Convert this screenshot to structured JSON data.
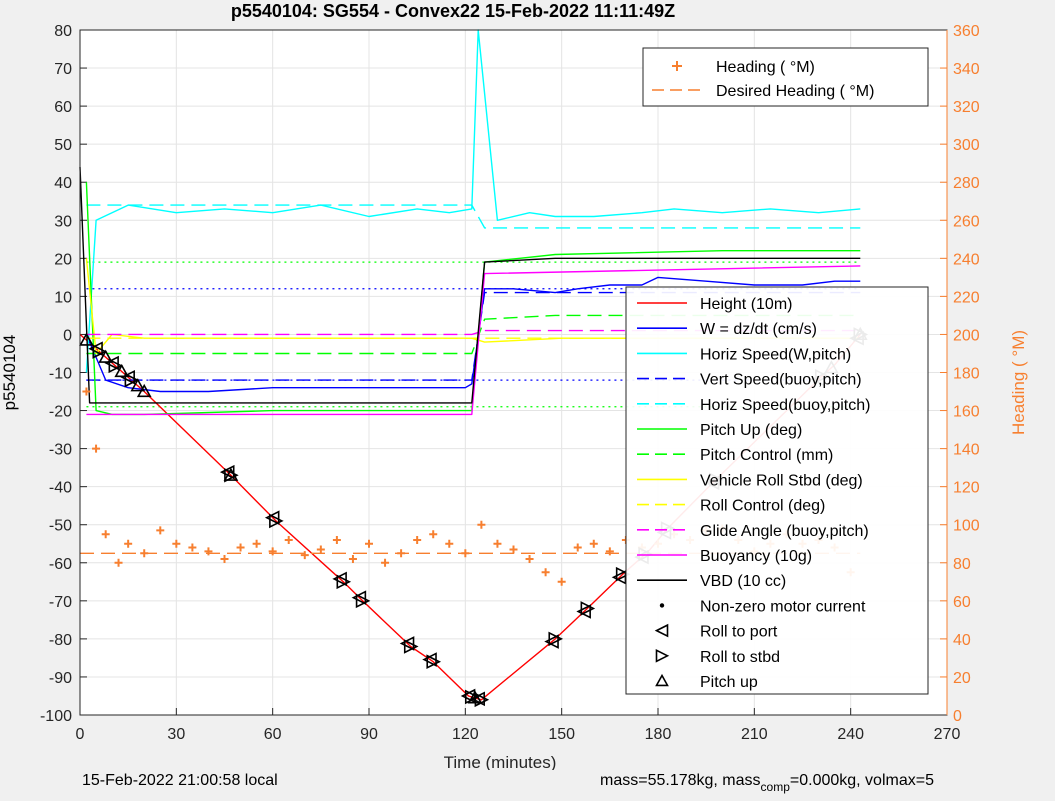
{
  "chart_data": {
    "type": "line",
    "title": "p5540104: SG554 - Convex22 15-Feb-2022 11:11:49Z",
    "xlabel": "Time (minutes)",
    "ylabel": "p5540104",
    "ylabel_right": "Heading (  °M)",
    "xlim": [
      0,
      270
    ],
    "ylim": [
      -100,
      80
    ],
    "ylim_right": [
      0,
      360
    ],
    "xticks": [
      0,
      30,
      60,
      90,
      120,
      150,
      180,
      210,
      240,
      270
    ],
    "yticks": [
      -100,
      -90,
      -80,
      -70,
      -60,
      -50,
      -40,
      -30,
      -20,
      -10,
      0,
      10,
      20,
      30,
      40,
      50,
      60,
      70,
      80
    ],
    "yticks_right": [
      0,
      20,
      40,
      60,
      80,
      100,
      120,
      140,
      160,
      180,
      200,
      220,
      240,
      260,
      280,
      300,
      320,
      340,
      360
    ],
    "grid": true,
    "legend_top_position": "top-right",
    "legend_top": [
      {
        "name": "Heading (  °M)",
        "style": "plus",
        "color": "#f77f2f"
      },
      {
        "name": "Desired Heading (    °M)",
        "style": "dashed",
        "color": "#f77f2f"
      }
    ],
    "legend_main_position": "right",
    "legend_main": [
      {
        "name": "Height (10m)",
        "style": "solid",
        "color": "#ff0000"
      },
      {
        "name": "W = dz/dt (cm/s)",
        "style": "solid",
        "color": "#0000ff"
      },
      {
        "name": "Horiz Speed(W,pitch)",
        "style": "solid",
        "color": "#00ffff"
      },
      {
        "name": "Vert Speed(buoy,pitch)",
        "style": "dashed",
        "color": "#0000ff"
      },
      {
        "name": "Horiz Speed(buoy,pitch)",
        "style": "dashed",
        "color": "#00ffff"
      },
      {
        "name": "Pitch Up (deg)",
        "style": "solid",
        "color": "#00ff00"
      },
      {
        "name": "Pitch Control (mm)",
        "style": "dashed",
        "color": "#00ff00"
      },
      {
        "name": "Vehicle Roll Stbd (deg)",
        "style": "solid",
        "color": "#ffff00"
      },
      {
        "name": "Roll Control (deg)",
        "style": "dashed",
        "color": "#ffff00"
      },
      {
        "name": "Glide Angle (buoy,pitch)",
        "style": "dashed",
        "color": "#ff00ff"
      },
      {
        "name": "Buoyancy (10g)",
        "style": "solid",
        "color": "#ff00ff"
      },
      {
        "name": "VBD (10 cc)",
        "style": "solid",
        "color": "#000000"
      },
      {
        "name": "Non-zero motor current",
        "style": "dot",
        "color": "#000000"
      },
      {
        "name": "Roll to port",
        "style": "tri-left",
        "color": "#000000"
      },
      {
        "name": "Roll to stbd",
        "style": "tri-right",
        "color": "#000000"
      },
      {
        "name": "Pitch up",
        "style": "tri-up",
        "color": "#000000"
      }
    ],
    "series": [
      {
        "name": "Height (10m)",
        "color": "#ff0000",
        "style": "solid",
        "x": [
          0,
          20,
          47,
          61,
          82,
          88,
          103,
          110,
          121,
          125,
          148,
          158,
          169,
          177,
          183,
          197,
          231,
          235,
          243
        ],
        "y": [
          0,
          -15,
          -37,
          -49,
          -65,
          -70,
          -82,
          -86,
          -95,
          -96,
          -80,
          -72,
          -63,
          -57,
          -51,
          -39,
          -11,
          -8,
          0
        ]
      },
      {
        "name": "W = dz/dt (cm/s)",
        "color": "#0000ff",
        "style": "solid",
        "x": [
          2,
          8,
          15,
          25,
          40,
          60,
          80,
          100,
          120,
          122,
          126,
          135,
          148,
          155,
          165,
          175,
          180,
          195,
          210,
          225,
          235,
          243
        ],
        "y": [
          0,
          -12,
          -14,
          -15,
          -15,
          -14,
          -14,
          -14,
          -14,
          -13,
          12,
          12,
          11,
          12,
          13,
          13,
          15,
          14,
          13,
          13,
          14,
          14
        ]
      },
      {
        "name": "Horiz Speed(W,pitch)",
        "color": "#00ffff",
        "style": "solid",
        "x": [
          2,
          5,
          15,
          30,
          45,
          60,
          75,
          90,
          105,
          115,
          122,
          124,
          130,
          140,
          148,
          160,
          175,
          185,
          200,
          215,
          230,
          243
        ],
        "y": [
          -10,
          30,
          34,
          32,
          33,
          32,
          34,
          31,
          33,
          32,
          33,
          80,
          30,
          32,
          31,
          31,
          32,
          33,
          32,
          33,
          32,
          33
        ]
      },
      {
        "name": "Vert Speed(buoy,pitch)",
        "color": "#0000ff",
        "style": "dashed",
        "x": [
          2,
          122,
          126,
          243
        ],
        "y": [
          -12,
          -12,
          11,
          11
        ]
      },
      {
        "name": "Horiz Speed(buoy,pitch)",
        "color": "#00ffff",
        "style": "dashed",
        "x": [
          2,
          122,
          126,
          243
        ],
        "y": [
          34,
          34,
          28,
          28
        ]
      },
      {
        "name": "Pitch Up (deg)",
        "color": "#00ff00",
        "style": "solid",
        "x": [
          2,
          5,
          10,
          20,
          60,
          100,
          122,
          126,
          148,
          200,
          243
        ],
        "y": [
          40,
          -20,
          -21,
          -21,
          -20,
          -20,
          -20,
          19,
          21,
          22,
          22
        ]
      },
      {
        "name": "Pitch Control (mm)",
        "color": "#00ff00",
        "style": "dashed",
        "x": [
          2,
          20,
          122,
          126,
          148,
          243
        ],
        "y": [
          -5,
          -5,
          -5,
          4,
          5,
          5
        ]
      },
      {
        "name": "Vehicle Roll Stbd (deg)",
        "color": "#ffff00",
        "style": "solid",
        "x": [
          2,
          5,
          10,
          20,
          48,
          60,
          100,
          122,
          126,
          150,
          180,
          243
        ],
        "y": [
          20,
          -5,
          0,
          -1,
          -1,
          -1,
          -1,
          -1,
          -2,
          -1,
          -1,
          -1
        ]
      },
      {
        "name": "Roll Control (deg)",
        "color": "#ffff00",
        "style": "dashed",
        "x": [
          2,
          243
        ],
        "y": [
          -1,
          -1
        ]
      },
      {
        "name": "Glide Angle (buoy,pitch)",
        "color": "#ff00ff",
        "style": "dashed",
        "x": [
          2,
          122,
          126,
          243
        ],
        "y": [
          0,
          0,
          1,
          1
        ]
      },
      {
        "name": "Buoyancy (10g)",
        "color": "#ff00ff",
        "style": "solid",
        "x": [
          2,
          20,
          122,
          126,
          243
        ],
        "y": [
          -21,
          -21,
          -21,
          16,
          18
        ]
      },
      {
        "name": "VBD (10 cc)",
        "color": "#000000",
        "style": "solid",
        "x": [
          0,
          3,
          20,
          122,
          126,
          148,
          243
        ],
        "y": [
          44,
          -18,
          -18,
          -18,
          19,
          20,
          20
        ]
      },
      {
        "name": "Heading (  °M)",
        "color": "#f77f2f",
        "style": "plus",
        "axis": "right",
        "x": [
          2,
          5,
          8,
          12,
          15,
          20,
          25,
          30,
          35,
          40,
          45,
          50,
          55,
          60,
          65,
          70,
          75,
          80,
          85,
          90,
          95,
          100,
          105,
          110,
          115,
          120,
          125,
          130,
          135,
          140,
          145,
          150,
          155,
          160,
          165,
          170,
          175,
          180,
          185,
          190,
          195,
          200,
          205,
          210,
          215,
          220,
          225,
          230,
          235,
          240
        ],
        "y": [
          170,
          140,
          95,
          80,
          90,
          85,
          97,
          90,
          88,
          86,
          82,
          88,
          90,
          86,
          92,
          84,
          87,
          92,
          82,
          90,
          80,
          85,
          92,
          95,
          90,
          85,
          100,
          90,
          87,
          82,
          75,
          70,
          88,
          90,
          86,
          92,
          88,
          90,
          95,
          92,
          97,
          98,
          92,
          86,
          90,
          95,
          90,
          92,
          88,
          75
        ]
      },
      {
        "name": "Desired Heading (    °M)",
        "color": "#f77f2f",
        "style": "dashed",
        "axis": "right",
        "x": [
          0,
          243
        ],
        "y": [
          85,
          85
        ]
      }
    ],
    "reference_lines": [
      {
        "color": "#0000ff",
        "style": "dotted",
        "y": 12,
        "x_range": [
          2,
          243
        ]
      },
      {
        "color": "#0000ff",
        "style": "dotted",
        "y": -12,
        "x_range": [
          2,
          243
        ]
      },
      {
        "color": "#00ff00",
        "style": "dotted",
        "y": 19,
        "x_range": [
          2,
          243
        ]
      },
      {
        "color": "#00ff00",
        "style": "dotted",
        "y": -19,
        "x_range": [
          2,
          243
        ]
      }
    ],
    "markers": [
      {
        "type": "tri-left",
        "x": [
          5,
          10,
          15,
          46,
          60,
          81,
          87,
          102,
          109,
          121,
          124,
          147,
          157,
          168,
          175,
          182,
          197,
          230,
          242
        ]
      },
      {
        "type": "tri-right",
        "x": [
          6,
          11,
          16,
          47,
          61,
          82,
          88,
          103,
          110,
          122,
          125,
          148,
          158,
          169,
          176,
          183,
          198,
          231,
          243
        ]
      },
      {
        "type": "tri-up",
        "x": [
          2,
          8,
          13,
          18,
          20,
          47,
          123,
          234,
          243
        ]
      }
    ]
  },
  "footer": {
    "local_time": "15-Feb-2022 21:00:58 local",
    "mass_text": "mass=55.178kg, mass",
    "comp_sub": "comp",
    "comp_text": "=0.000kg, volmax=5"
  }
}
